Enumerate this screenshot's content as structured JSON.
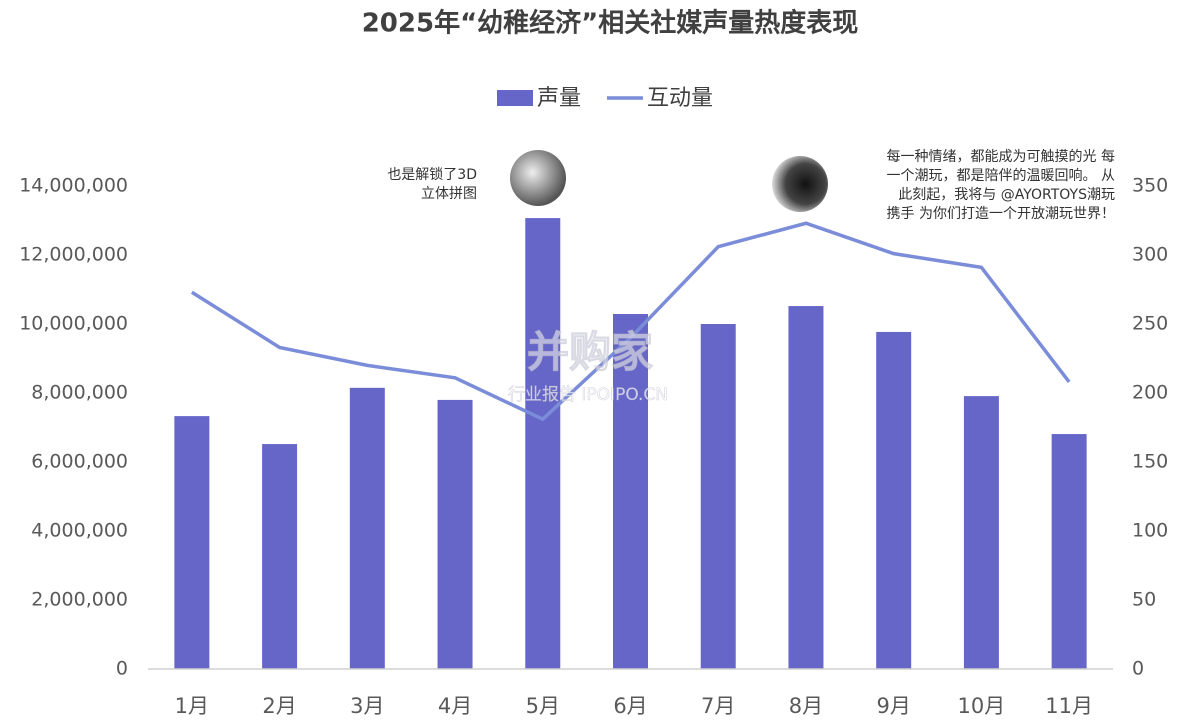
{
  "chart_data": {
    "type": "bar-line",
    "title": "2025年“幼稚经济”相关社媒声量热度表现",
    "categories": [
      "1月",
      "2月",
      "3月",
      "4月",
      "5月",
      "6月",
      "7月",
      "8月",
      "9月",
      "10月",
      "11月"
    ],
    "series": [
      {
        "name": "声量",
        "type": "bar",
        "color": "#6666c9",
        "values": [
          7330000,
          6520000,
          8150000,
          7800000,
          13070000,
          10290000,
          10000000,
          10520000,
          9770000,
          7910000,
          6810000
        ]
      },
      {
        "name": "互动量",
        "type": "line",
        "axis": "y2",
        "color": "#7b8cd9",
        "values": [
          273,
          233,
          220,
          211,
          181,
          240,
          306,
          323,
          301,
          291,
          208
        ]
      }
    ],
    "ylim": [
      0,
      14000000
    ],
    "yticks": [
      0,
      {
        "value": 2000000,
        "label": "2,000,000"
      },
      {
        "value": 4000000,
        "label": "4,000,000"
      },
      {
        "value": 6000000,
        "label": "6,000,000"
      },
      {
        "value": 8000000,
        "label": "8,000,000"
      },
      {
        "value": 10000000,
        "label": "10,000,000"
      },
      {
        "value": 12000000,
        "label": "12,000,000"
      },
      {
        "value": 14000000,
        "label": "14,000,000"
      }
    ],
    "y2lim": [
      0,
      350
    ],
    "y2ticks": [
      0,
      50,
      100,
      150,
      200,
      250,
      300,
      350
    ],
    "grid": false,
    "legend": "top",
    "annotations": [
      {
        "lines": [
          "也是解锁了3D",
          "立体拼图"
        ]
      },
      {
        "lines": [
          "每一种情绪，都能成为可触摸的光 每",
          "一个潮玩，都是陪伴的温暖回响。 从",
          "此刻起，我将与 @AYORTOYS潮玩",
          "携手 为你们打造一个开放潮玩世界！"
        ]
      }
    ],
    "watermark": [
      "并购家",
      "行业报告 IPOIPO.CN"
    ]
  }
}
